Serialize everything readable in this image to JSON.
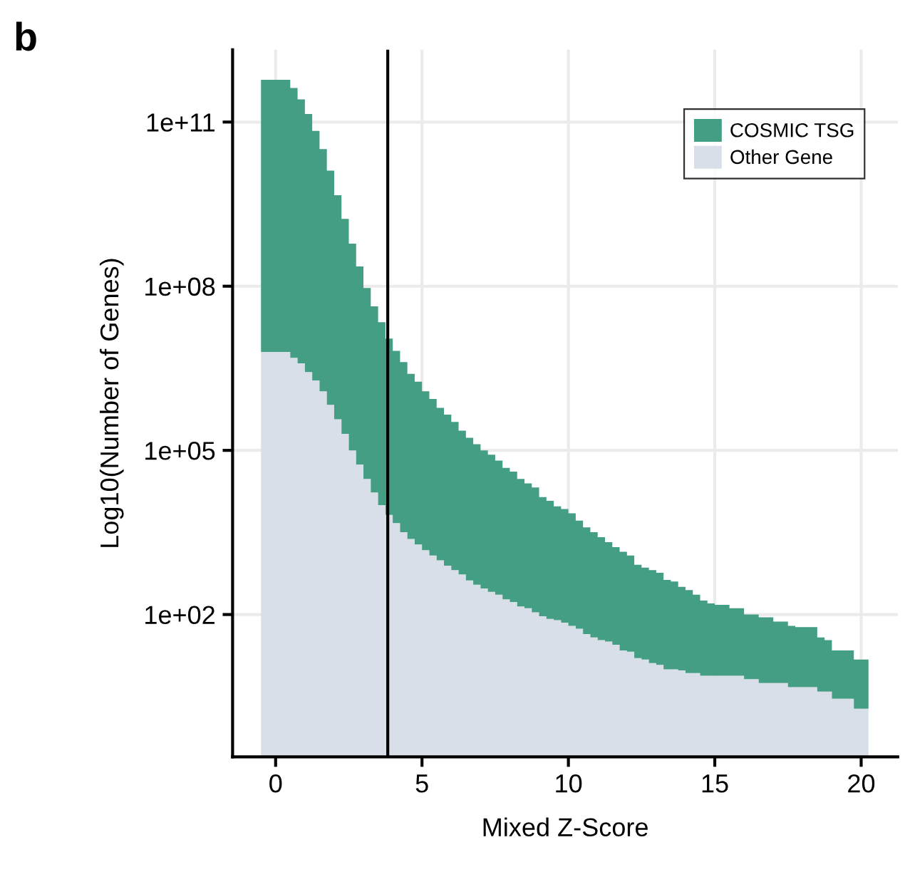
{
  "chart_data": {
    "type": "histogram",
    "title": "b",
    "xlabel": "Mixed Z-Score",
    "ylabel": "Log10(Number of Genes)",
    "bins": [
      -0.5,
      -0.25,
      0,
      0.25,
      0.5,
      0.75,
      1,
      1.25,
      1.5,
      1.75,
      2,
      2.25,
      2.5,
      2.75,
      3,
      3.25,
      3.5,
      3.75,
      4,
      4.25,
      4.5,
      4.75,
      5,
      5.25,
      5.5,
      5.75,
      6,
      6.25,
      6.5,
      6.75,
      7,
      7.25,
      7.5,
      7.75,
      8,
      8.25,
      8.5,
      8.75,
      9,
      9.25,
      9.5,
      9.75,
      10,
      10.25,
      10.5,
      10.75,
      11,
      11.25,
      11.5,
      11.75,
      12,
      12.25,
      12.5,
      12.75,
      13,
      13.25,
      13.5,
      13.75,
      14,
      14.25,
      14.5,
      14.75,
      15,
      15.25,
      15.5,
      15.75,
      16,
      16.25,
      16.5,
      16.75,
      17,
      17.25,
      17.5,
      17.75,
      18,
      18.25,
      18.5,
      18.75,
      19,
      19.25,
      19.5,
      19.75,
      20,
      20.25
    ],
    "series": [
      {
        "name": "Other Gene",
        "color": "#d9dfe8",
        "values": [
          6300000.0,
          6300000.0,
          6300000.0,
          6300000.0,
          4900000.0,
          3900000.0,
          2700000.0,
          1900000.0,
          1200000.0,
          680000.0,
          370000.0,
          200000.0,
          100000.0,
          55000.0,
          30000.0,
          17000.0,
          10000.0,
          6600,
          4700,
          3200,
          2400,
          1900,
          1500,
          1200,
          980,
          780,
          650,
          540,
          420,
          350,
          300,
          260,
          230,
          190,
          170,
          140,
          130,
          110,
          93,
          83,
          79,
          71,
          62,
          55,
          44,
          38,
          34,
          32,
          28,
          22,
          21,
          16,
          15,
          13,
          12,
          10,
          10,
          9.5,
          8.5,
          8.5,
          7.6,
          7.6,
          7.6,
          7.6,
          7.6,
          7.6,
          6.6,
          6.6,
          5.6,
          5.6,
          5.6,
          5.6,
          4.7,
          4.7,
          4.7,
          4.7,
          3.9,
          3.9,
          2.9,
          2.9,
          2.9,
          1.9,
          1.9
        ]
      },
      {
        "name": "COSMIC TSG",
        "color": "#449e84",
        "values": [
          590000000000.0,
          590000000000.0,
          590000000000.0,
          590000000000.0,
          420000000000.0,
          260000000000.0,
          140000000000.0,
          69000000000.0,
          32000000000.0,
          13000000000.0,
          4600000000.0,
          1700000000.0,
          600000000.0,
          230000000.0,
          93000000.0,
          43000000.0,
          22000000.0,
          11000000.0,
          6600000.0,
          4100000.0,
          2500000.0,
          1800000.0,
          1200000.0,
          870000.0,
          600000.0,
          450000.0,
          330000.0,
          230000.0,
          170000.0,
          130000.0,
          100000.0,
          83000.0,
          65000.0,
          48000.0,
          41000.0,
          30000.0,
          25000.0,
          21000.0,
          14000.0,
          12000.0,
          9500,
          8500,
          7100,
          5200,
          3900,
          3200,
          2600,
          2100,
          1700,
          1400,
          1200,
          810,
          720,
          650,
          580,
          430,
          400,
          320,
          280,
          230,
          180,
          160,
          150,
          150,
          130,
          130,
          100,
          100,
          89,
          89,
          74,
          74,
          62,
          59,
          59,
          59,
          38,
          34,
          22,
          22,
          22,
          15,
          15
        ]
      }
    ],
    "log": "y",
    "xlim": [
      -1.47,
      21.25
    ],
    "xticks": [
      0,
      5,
      10,
      15,
      20
    ],
    "ylim": [
      0.25,
      2100000000000.0
    ],
    "yticks": [
      {
        "value": 100.0,
        "label": "1e+02"
      },
      {
        "value": 100000.0,
        "label": "1e+05"
      },
      {
        "value": 100000000.0,
        "label": "1e+08"
      },
      {
        "value": 100000000000.0,
        "label": "1e+11"
      }
    ],
    "ref_lines": [
      {
        "axis": "x",
        "value": 3.83,
        "color": "#000000"
      }
    ],
    "grid": true,
    "legend": "top right"
  }
}
